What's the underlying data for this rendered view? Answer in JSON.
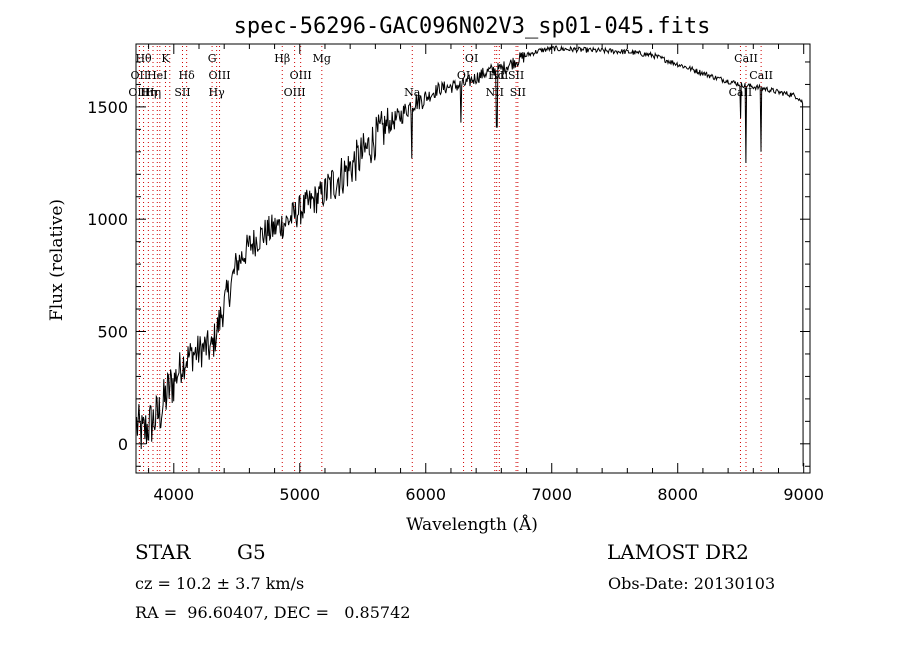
{
  "chart_data": {
    "type": "line",
    "title": "spec-56296-GAC096N02V3_sp01-045.fits",
    "xlabel": "Wavelength (Å)",
    "ylabel": "Flux (relative)",
    "xlim": [
      3700,
      9050
    ],
    "ylim": [
      -130,
      1780
    ],
    "xticks": [
      4000,
      5000,
      6000,
      7000,
      8000,
      9000
    ],
    "yticks": [
      0,
      500,
      1000,
      1500
    ],
    "xtick_labels": [
      "4000",
      "5000",
      "6000",
      "7000",
      "8000",
      "9000"
    ],
    "ytick_labels": [
      "0",
      "500",
      "1000",
      "1500"
    ],
    "grid": false,
    "continuum": [
      [
        3700,
        90
      ],
      [
        3750,
        40
      ],
      [
        3800,
        80
      ],
      [
        3850,
        110
      ],
      [
        3900,
        150
      ],
      [
        3950,
        230
      ],
      [
        4000,
        280
      ],
      [
        4050,
        340
      ],
      [
        4100,
        380
      ],
      [
        4150,
        400
      ],
      [
        4200,
        410
      ],
      [
        4250,
        430
      ],
      [
        4300,
        420
      ],
      [
        4350,
        520
      ],
      [
        4400,
        620
      ],
      [
        4450,
        700
      ],
      [
        4500,
        800
      ],
      [
        4600,
        880
      ],
      [
        4700,
        930
      ],
      [
        4800,
        960
      ],
      [
        4900,
        990
      ],
      [
        5000,
        1040
      ],
      [
        5100,
        1080
      ],
      [
        5200,
        1120
      ],
      [
        5300,
        1180
      ],
      [
        5400,
        1230
      ],
      [
        5500,
        1290
      ],
      [
        5600,
        1360
      ],
      [
        5700,
        1420
      ],
      [
        5800,
        1460
      ],
      [
        5900,
        1520
      ],
      [
        6000,
        1540
      ],
      [
        6100,
        1580
      ],
      [
        6200,
        1590
      ],
      [
        6300,
        1600
      ],
      [
        6400,
        1630
      ],
      [
        6500,
        1660
      ],
      [
        6600,
        1670
      ],
      [
        6700,
        1700
      ],
      [
        6800,
        1730
      ],
      [
        6900,
        1750
      ],
      [
        7000,
        1760
      ],
      [
        7200,
        1755
      ],
      [
        7400,
        1750
      ],
      [
        7600,
        1745
      ],
      [
        7800,
        1730
      ],
      [
        8000,
        1690
      ],
      [
        8100,
        1670
      ],
      [
        8200,
        1650
      ],
      [
        8300,
        1630
      ],
      [
        8400,
        1615
      ],
      [
        8500,
        1600
      ],
      [
        8600,
        1590
      ],
      [
        8700,
        1580
      ],
      [
        8800,
        1565
      ],
      [
        8900,
        1555
      ],
      [
        8950,
        1545
      ],
      [
        8990,
        1520
      ]
    ],
    "absorption_features": [
      {
        "x": 5890,
        "y": 1270
      },
      {
        "x": 6280,
        "y": 1430
      },
      {
        "x": 6563,
        "y": 1410
      },
      {
        "x": 8498,
        "y": 1450
      },
      {
        "x": 8542,
        "y": 1250
      },
      {
        "x": 8662,
        "y": 1300
      }
    ],
    "line_markers": [
      {
        "x": 3727,
        "label": "OII",
        "row": 1
      },
      {
        "x": 3727,
        "label": "OIII",
        "row": 2
      },
      {
        "x": 3760,
        "label": "Hθ",
        "row": 0
      },
      {
        "x": 3798,
        "label": "Hη",
        "row": 2
      },
      {
        "x": 3835,
        "label": "Hη",
        "row": 2
      },
      {
        "x": 3869,
        "label": "HeI",
        "row": 1
      },
      {
        "x": 3889,
        "label": "",
        "row": 0
      },
      {
        "x": 3934,
        "label": "K",
        "row": 0
      },
      {
        "x": 3968,
        "label": "",
        "row": 0
      },
      {
        "x": 4069,
        "label": "SII",
        "row": 2
      },
      {
        "x": 4102,
        "label": "Hδ",
        "row": 1
      },
      {
        "x": 4304,
        "label": "G",
        "row": 0
      },
      {
        "x": 4340,
        "label": "Hγ",
        "row": 2
      },
      {
        "x": 4363,
        "label": "OIII",
        "row": 1
      },
      {
        "x": 4861,
        "label": "Hβ",
        "row": 0
      },
      {
        "x": 4959,
        "label": "OIII",
        "row": 2
      },
      {
        "x": 5007,
        "label": "OIII",
        "row": 1
      },
      {
        "x": 5175,
        "label": "Mg",
        "row": 0
      },
      {
        "x": 5893,
        "label": "Na",
        "row": 2
      },
      {
        "x": 6300,
        "label": "OI",
        "row": 1
      },
      {
        "x": 6364,
        "label": "OI",
        "row": 0
      },
      {
        "x": 6548,
        "label": "NII",
        "row": 2
      },
      {
        "x": 6563,
        "label": "Hα",
        "row": 1
      },
      {
        "x": 6584,
        "label": "NII",
        "row": 1
      },
      {
        "x": 6717,
        "label": "SII",
        "row": 1
      },
      {
        "x": 6731,
        "label": "SII",
        "row": 2
      },
      {
        "x": 8498,
        "label": "CaII",
        "row": 2
      },
      {
        "x": 8542,
        "label": "CaII",
        "row": 0
      },
      {
        "x": 8662,
        "label": "CaII",
        "row": 1
      }
    ]
  },
  "info": {
    "object_class": "STAR",
    "subclass": "G5",
    "survey": "LAMOST DR2",
    "redshift": "cz = 10.2 ± 3.7 km/s",
    "obs_date": "Obs-Date: 20130103",
    "coords": "RA =  96.60407, DEC =   0.85742"
  }
}
